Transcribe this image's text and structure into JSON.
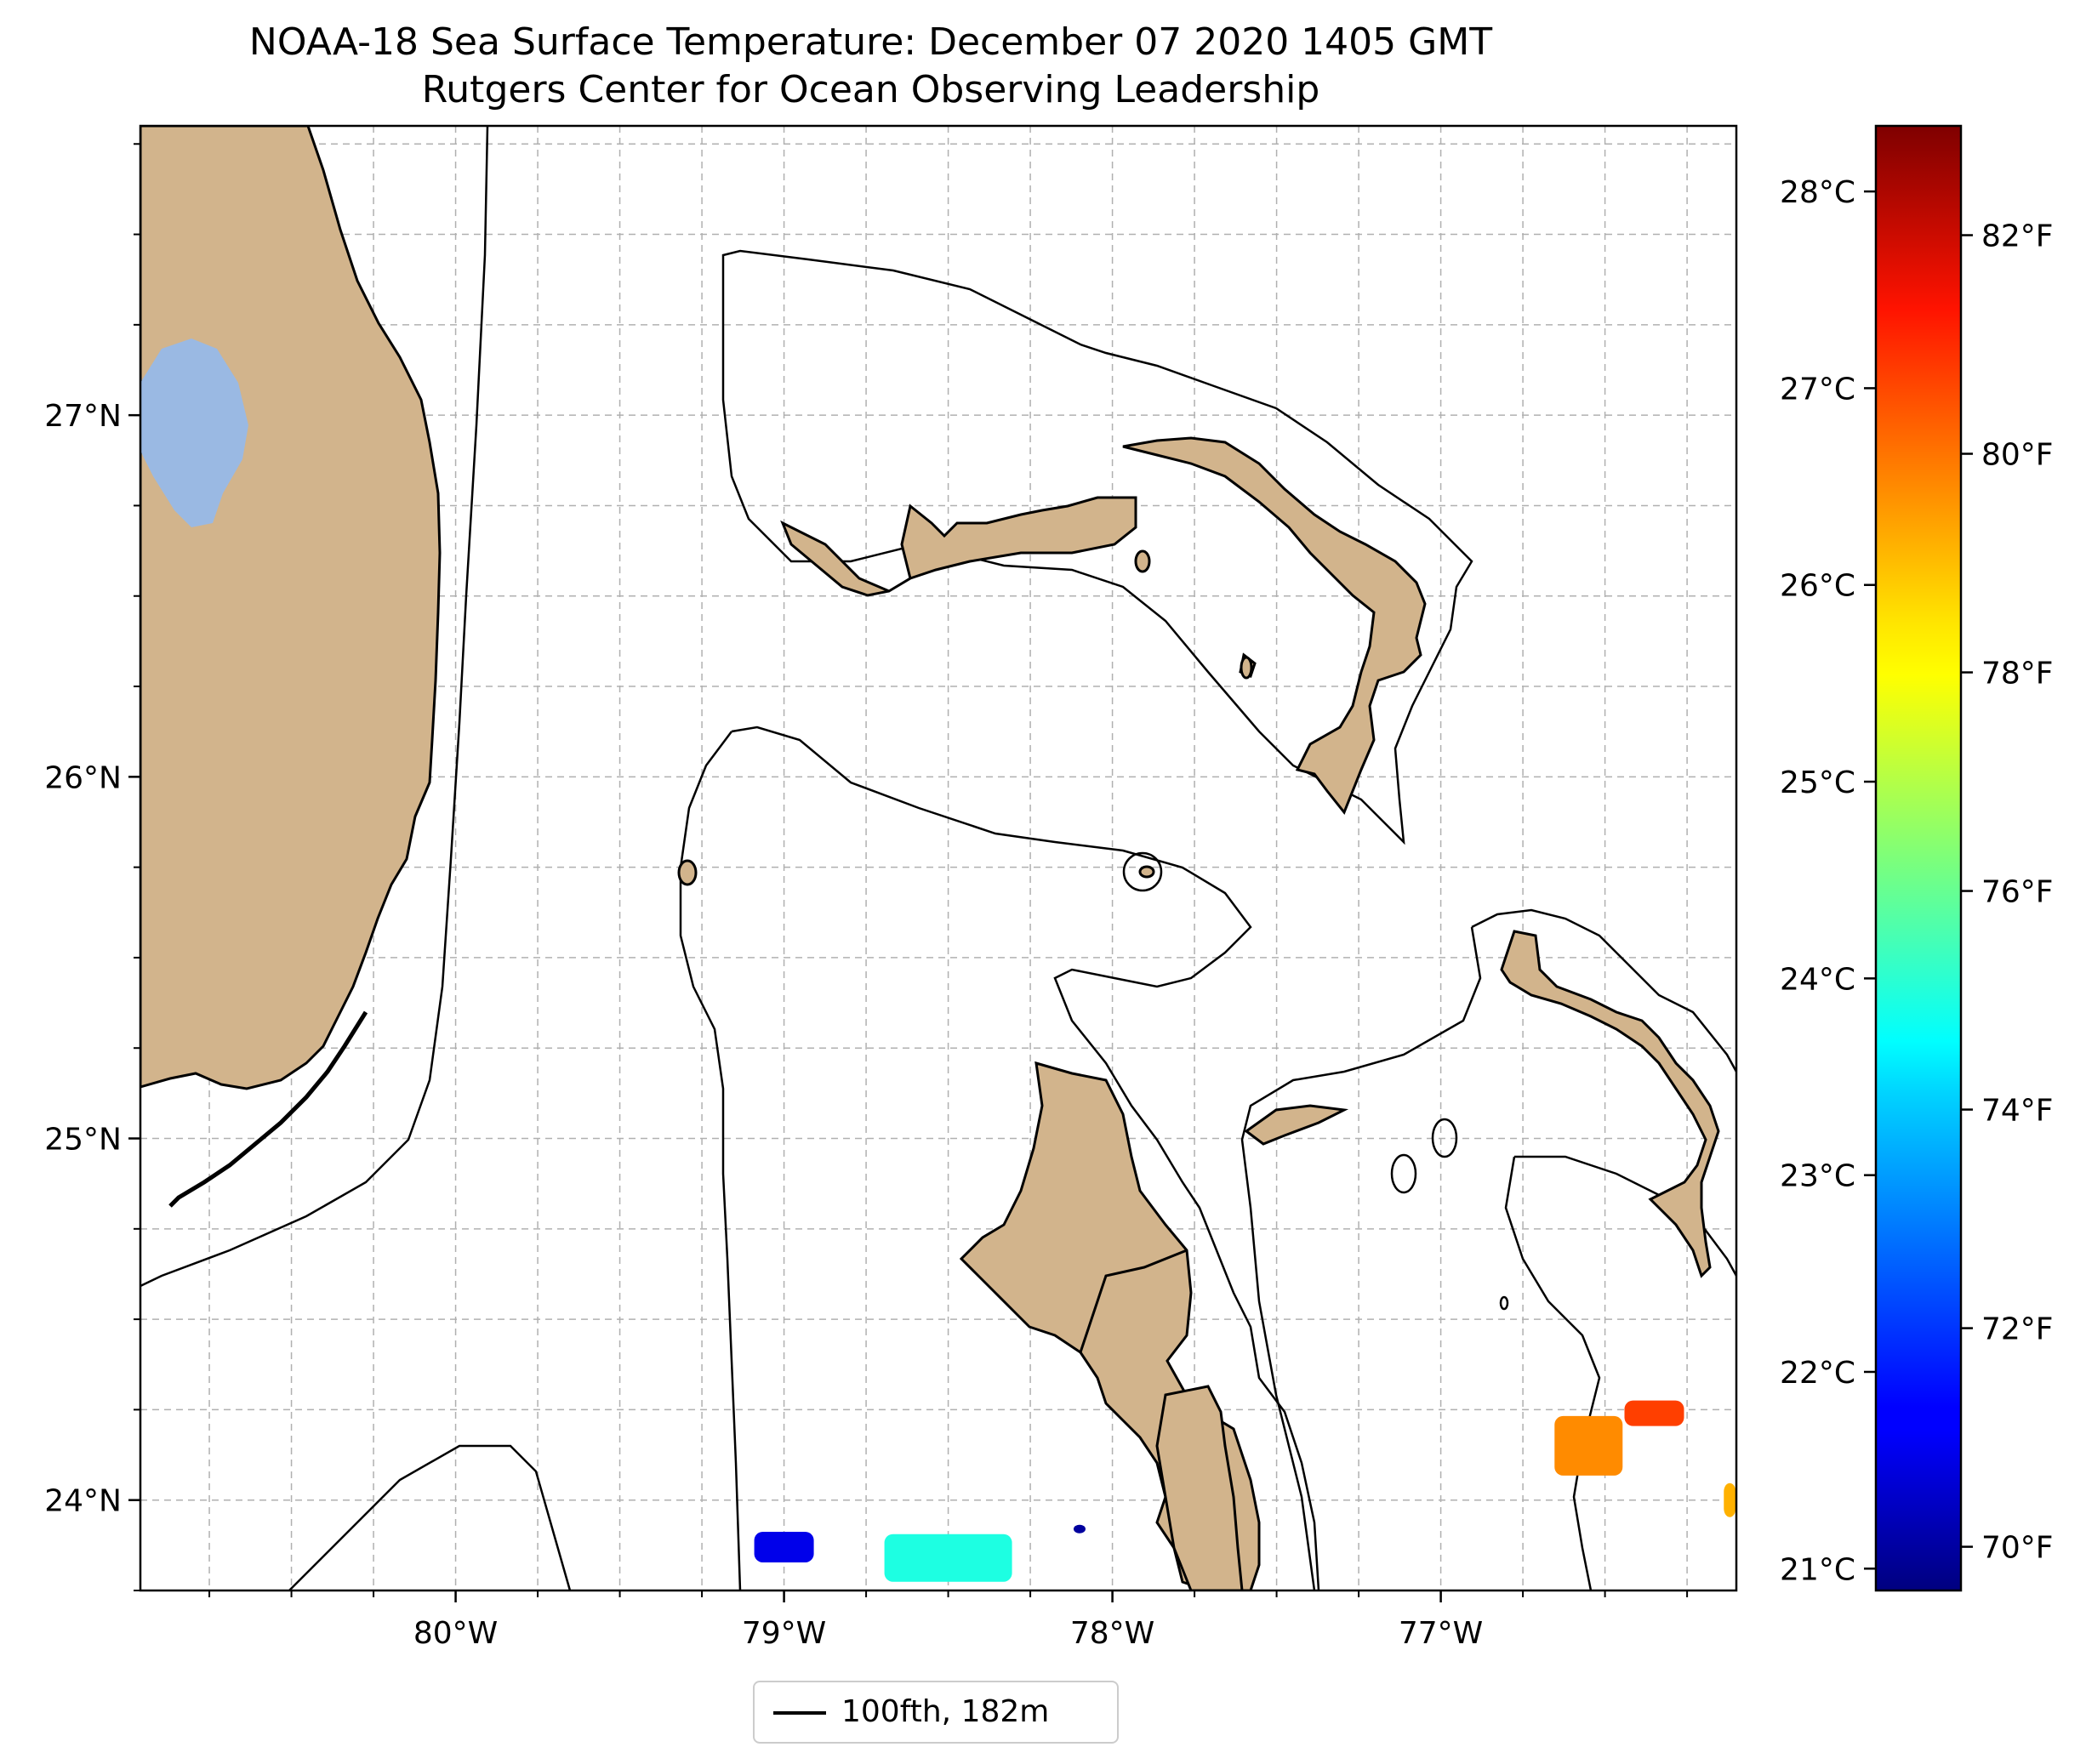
{
  "title": {
    "line1": "NOAA-18 Sea Surface Temperature: December 07 2020 1405 GMT",
    "line2": "Rutgers Center for Ocean Observing Leadership"
  },
  "map": {
    "lon_range": [
      -80.96,
      -76.1
    ],
    "lat_range": [
      23.75,
      27.8
    ],
    "lon_ticks": [
      {
        "value": -80,
        "label": "80°W"
      },
      {
        "value": -79,
        "label": "79°W"
      },
      {
        "value": -78,
        "label": "78°W"
      },
      {
        "value": -77,
        "label": "77°W"
      }
    ],
    "lat_ticks": [
      {
        "value": 24,
        "label": "24°N"
      },
      {
        "value": 25,
        "label": "25°N"
      },
      {
        "value": 26,
        "label": "26°N"
      },
      {
        "value": 27,
        "label": "27°N"
      }
    ],
    "gridlines": true,
    "land_color": "#d2b48c",
    "lake_color": "#9ab9e3",
    "coastline_color": "#000000"
  },
  "legend": {
    "label": "100fth, 182m",
    "placement": "bottom-center"
  },
  "colorbar": {
    "colormap": "jet",
    "fahrenheit_ticks": [
      {
        "value": 70,
        "label": "70°F"
      },
      {
        "value": 72,
        "label": "72°F"
      },
      {
        "value": 74,
        "label": "74°F"
      },
      {
        "value": 76,
        "label": "76°F"
      },
      {
        "value": 78,
        "label": "78°F"
      },
      {
        "value": 80,
        "label": "80°F"
      },
      {
        "value": 82,
        "label": "82°F"
      }
    ],
    "celsius_ticks": [
      {
        "value": 21,
        "label": "21°C"
      },
      {
        "value": 22,
        "label": "22°C"
      },
      {
        "value": 23,
        "label": "23°C"
      },
      {
        "value": 24,
        "label": "24°C"
      },
      {
        "value": 25,
        "label": "25°C"
      },
      {
        "value": 26,
        "label": "26°C"
      },
      {
        "value": 27,
        "label": "27°C"
      },
      {
        "value": 28,
        "label": "28°C"
      }
    ],
    "range_f": [
      69.6,
      83.0
    ]
  },
  "sst_patches": [
    {
      "lon": -79.0,
      "lat": 23.87,
      "temp_f": 71.0
    },
    {
      "lon": -78.5,
      "lat": 23.84,
      "temp_f": 75.0
    },
    {
      "lon": -78.1,
      "lat": 23.92,
      "temp_f": 70.0
    },
    {
      "lon": -76.55,
      "lat": 24.15,
      "temp_f": 79.5
    },
    {
      "lon": -76.35,
      "lat": 24.24,
      "temp_f": 80.5
    },
    {
      "lon": -76.12,
      "lat": 24.0,
      "temp_f": 79.0
    }
  ]
}
